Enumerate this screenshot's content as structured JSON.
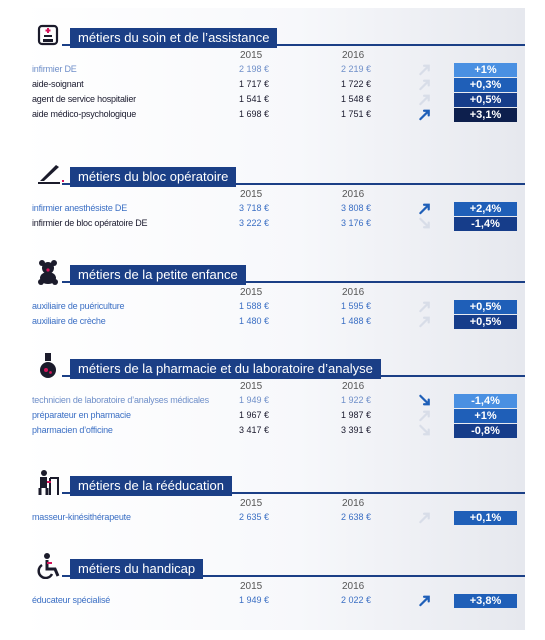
{
  "years": {
    "y1": "2015",
    "y2": "2016"
  },
  "colors": {
    "light": "#4a90e2",
    "mid": "#1f5fb8",
    "dark": "#163d8a",
    "darkest": "#0d1f4d"
  },
  "sections": [
    {
      "title": "métiers du soin et de l’assistance",
      "icon": "hospital-bed-icon",
      "rows": [
        {
          "job": "infirmier DE",
          "v2015": "2 198 €",
          "v2016": "2 219 €",
          "pct": "+1%",
          "arrow": "up",
          "tone": "light"
        },
        {
          "job": "aide-soignant",
          "v2015": "1 717 €",
          "v2016": "1 722 €",
          "pct": "+0,3%",
          "arrow": "up",
          "tone": "mid"
        },
        {
          "job": "agent de service hospitalier",
          "v2015": "1 541 €",
          "v2016": "1 548 €",
          "pct": "+0,5%",
          "arrow": "up",
          "tone": "dark"
        },
        {
          "job": "aide médico-psychologique",
          "v2015": "1 698 €",
          "v2016": "1 751 €",
          "pct": "+3,1%",
          "arrow": "up-strong",
          "tone": "darkest"
        }
      ]
    },
    {
      "title": "métiers du bloc opératoire",
      "icon": "scalpel-icon",
      "rows": [
        {
          "job": "infirmier anesthésiste DE",
          "v2015": "3 718 €",
          "v2016": "3 808 €",
          "pct": "+2,4%",
          "arrow": "up-strong",
          "tone": "mid"
        },
        {
          "job": "infirmier de bloc opératoire DE",
          "v2015": "3 222 €",
          "v2016": "3 176 €",
          "pct": "-1,4%",
          "arrow": "down",
          "tone": "dark"
        }
      ]
    },
    {
      "title": "métiers de la petite enfance",
      "icon": "teddy-bear-icon",
      "rows": [
        {
          "job": "auxiliaire de puériculture",
          "v2015": "1 588 €",
          "v2016": "1 595 €",
          "pct": "+0,5%",
          "arrow": "up",
          "tone": "mid"
        },
        {
          "job": "auxiliaire de crèche",
          "v2015": "1 480 €",
          "v2016": "1 488 €",
          "pct": "+0,5%",
          "arrow": "up",
          "tone": "dark"
        }
      ]
    },
    {
      "title": "métiers de la pharmacie et du laboratoire d’analyse",
      "icon": "flask-icon",
      "rows": [
        {
          "job": "technicien de laboratoire d’analyses médicales",
          "v2015": "1 949 €",
          "v2016": "1 922 €",
          "pct": "-1,4%",
          "arrow": "down-strong",
          "tone": "light"
        },
        {
          "job": "préparateur en pharmacie",
          "v2015": "1 967 €",
          "v2016": "1 987 €",
          "pct": "+1%",
          "arrow": "up",
          "tone": "mid"
        },
        {
          "job": "pharmacien d’officine",
          "v2015": "3 417 €",
          "v2016": "3 391 €",
          "pct": "-0,8%",
          "arrow": "down",
          "tone": "dark"
        }
      ]
    },
    {
      "title": "métiers de la rééducation",
      "icon": "rehab-walker-icon",
      "rows": [
        {
          "job": "masseur-kinésithérapeute",
          "v2015": "2 635 €",
          "v2016": "2 638 €",
          "pct": "+0,1%",
          "arrow": "up",
          "tone": "mid"
        }
      ]
    },
    {
      "title": "métiers du handicap",
      "icon": "wheelchair-icon",
      "rows": [
        {
          "job": "éducateur spécialisé",
          "v2015": "1 949 €",
          "v2016": "2 022 €",
          "pct": "+3,8%",
          "arrow": "up-strong",
          "tone": "mid"
        }
      ]
    }
  ]
}
